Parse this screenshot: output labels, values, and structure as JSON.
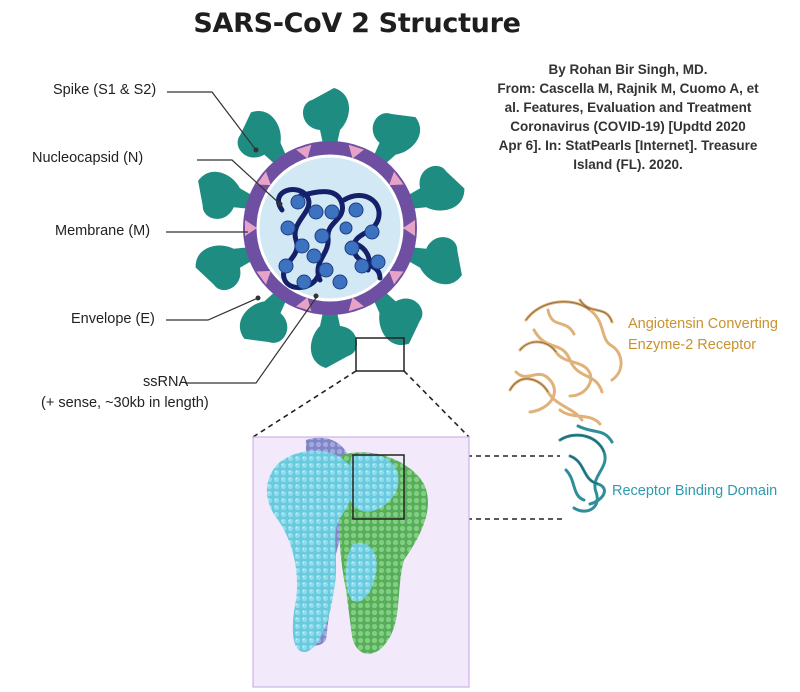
{
  "title": "SARS-CoV 2 Structure",
  "credit": [
    "By Rohan Bir Singh, MD.",
    "From: Cascella M, Rajnik M, Cuomo A, et",
    "al. Features, Evaluation and Treatment",
    "Coronavirus (COVID-19) [Updtd 2020",
    "Apr 6]. In: StatPearls [Internet]. Treasure",
    "Island (FL). 2020."
  ],
  "labels": {
    "spike": "Spike (S1 & S2)",
    "nucleocapsid": "Nucleocapsid (N)",
    "membrane": "Membrane (M)",
    "envelope": "Envelope (E)",
    "ssrna": "ssRNA",
    "ssrna_detail": "(+ sense, ~30kb in length)"
  },
  "ace2": [
    "Angiotensin Converting",
    "Enzyme-2 Receptor"
  ],
  "rbd": "Receptor Binding Domain",
  "colors": {
    "spike": "#1f8c82",
    "membrane": "#6f4fa2",
    "envelope": "#e7a3c7",
    "inner": "#d2e8f4",
    "rna": "#15206a",
    "nucleocapsid": "#3d72c0",
    "protein_cyan": "#69c9dd",
    "protein_green": "#6cc06e",
    "protein_lilac": "#8b91d1",
    "panel_bg": "#f2e9fb",
    "ace2_tan": "#e0b27a",
    "rbd_teal": "#2f8e98"
  }
}
